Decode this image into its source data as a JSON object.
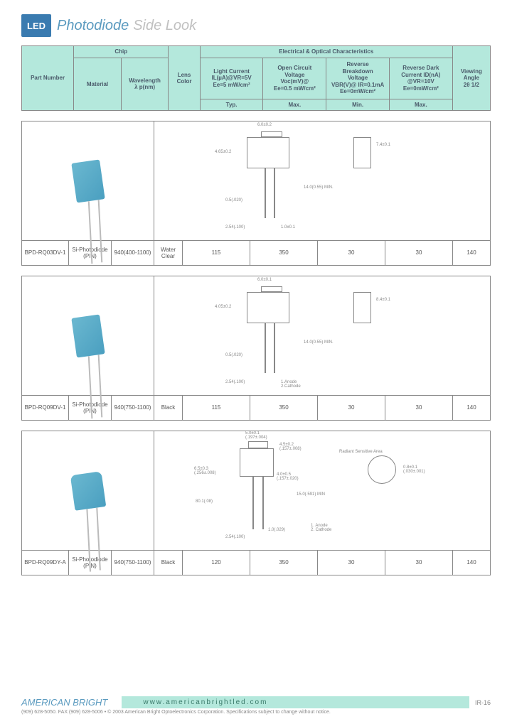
{
  "header": {
    "logo_text": "LED",
    "title_main": "Photodiode",
    "title_sub": "Side Look"
  },
  "colors": {
    "header_bg": "#b4e8dc",
    "border": "#888888",
    "text": "#4a5a6a",
    "accent": "#5a9abf",
    "logo_bg": "#3a7bb0",
    "diode_light": "#6bb8d0",
    "diode_dark": "#4a9fc0"
  },
  "spec_header": {
    "part_number": "Part Number",
    "chip": "Chip",
    "material": "Material",
    "wavelength": "Wavelength\nλ p(nm)",
    "lens_color": "Lens\nColor",
    "electrical": "Electrical & Optical Characteristics",
    "light_current": "Light Current\nIL(µA)@VR=5V\nEe=5 mW/cm²",
    "open_circuit": "Open Circuit\nVoltage\nVoc(mV)@\nEe=0.5 mW/cm²",
    "reverse_breakdown": "Reverse\nBreakdown\nVoltage\nVBR(V)@ IR=0.1mA\nEe=0mW/cm²",
    "reverse_dark": "Reverse Dark\nCurrent ID(nA)\n@VR=10V\nEe=0mW/cm²",
    "viewing_angle": "Viewing\nAngle\n2θ 1/2",
    "typ": "Typ.",
    "max": "Max.",
    "min": "Min."
  },
  "products": [
    {
      "part": "BPD-RQ03DV-1",
      "material": "Si-Photodiode\n(PIN)",
      "wavelength": "940(400-1100)",
      "lens": "Water\nClear",
      "light_current": "115",
      "open_circuit": "350",
      "reverse_breakdown": "30",
      "reverse_dark": "30",
      "viewing": "140",
      "shape": "rect",
      "diagram_labels": {
        "a": "6.0±0.2",
        "b": "4.65±0.2",
        "c": "7.4±0.1",
        "d": "14.0(0.55) MIN.",
        "e": "0.5(.020)",
        "f": "2.54(.100)",
        "g": "1.0±0.1"
      }
    },
    {
      "part": "BPD-RQ09DV-1",
      "material": "Si-Photodiode\n(PIN)",
      "wavelength": "940(750-1100)",
      "lens": "Black",
      "light_current": "115",
      "open_circuit": "350",
      "reverse_breakdown": "30",
      "reverse_dark": "30",
      "viewing": "140",
      "shape": "rect",
      "diagram_labels": {
        "a": "6.0±0.1",
        "b": "4.05±0.2",
        "c": "8.4±0.1",
        "d": "14.0(0.55) MIN.",
        "e": "0.5(.020)",
        "f": "2.54(.100)",
        "g": "1.Anode\n2.Cathode"
      }
    },
    {
      "part": "BPD-RQ09DY-A",
      "material": "Si-Photodiode\n(PIN)",
      "wavelength": "940(750-1100)",
      "lens": "Black",
      "light_current": "120",
      "open_circuit": "350",
      "reverse_breakdown": "30",
      "reverse_dark": "30",
      "viewing": "140",
      "shape": "round",
      "diagram_labels": {
        "a": "5.0±0.1\n(.197±.004)",
        "b": "4.5±0.2\n(.157±.008)",
        "c": "6.5±0.3\n(.256±.008)",
        "d": "4.0±0.5\n(.157±.020)",
        "e": "15.0(.591) MIN",
        "f": "2.54(.100)",
        "g": "1.0(.029)",
        "h": "80.1(.08)",
        "i": "Radiant Sensitive Area",
        "j": "0.8±0.1\n(.030±.001)",
        "k": "1. Anode\n2. Cathode"
      }
    }
  ],
  "footer": {
    "brand": "AMERICAN BRIGHT",
    "url": "www.americanbrightled.com",
    "page": "IR-16",
    "fine": "(909) 628-5050. FAX (909) 628-5006 • © 2003 American Bright Optoelectronics Corporation. Specifications subject to change without notice."
  }
}
